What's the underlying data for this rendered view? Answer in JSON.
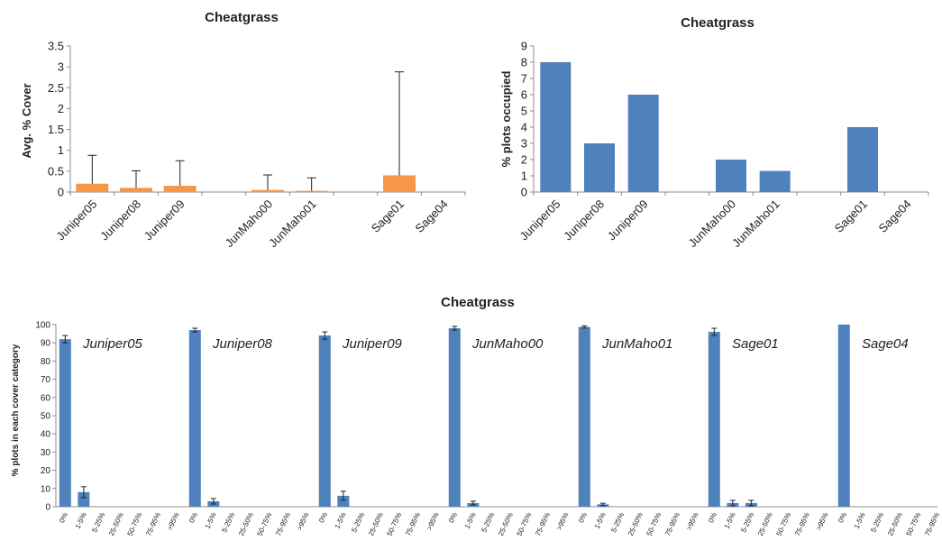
{
  "colors": {
    "orange": "#f79646",
    "blue": "#4f81bd",
    "axis": "#8c8c8c",
    "text": "#222222"
  },
  "chart_data": [
    {
      "type": "bar",
      "title": "Cheatgrass",
      "ylabel": "Avg. % Cover",
      "xlabel": "",
      "ylim": [
        0,
        3.5
      ],
      "yticks": [
        "0",
        "0.5",
        "1",
        "1.5",
        "2",
        "2.5",
        "3",
        "3.5"
      ],
      "ytick_values": [
        0,
        0.5,
        1,
        1.5,
        2,
        2.5,
        3,
        3.5
      ],
      "categories": [
        "Juniper05",
        "Juniper08",
        "Juniper09",
        "",
        "JunMaho00",
        "JunMaho01",
        "",
        "Sage01",
        "Sage04"
      ],
      "values": [
        0.2,
        0.1,
        0.15,
        null,
        0.05,
        0.03,
        null,
        0.4,
        0
      ],
      "error_upper": [
        0.88,
        0.51,
        0.75,
        null,
        0.41,
        0.34,
        null,
        2.88,
        null
      ],
      "grid": false,
      "legend": "none",
      "color": "orange"
    },
    {
      "type": "bar",
      "title": "Cheatgrass",
      "ylabel": "% plots occupied",
      "xlabel": "",
      "ylim": [
        0,
        9
      ],
      "yticks": [
        "0",
        "1",
        "2",
        "3",
        "4",
        "5",
        "6",
        "7",
        "8",
        "9"
      ],
      "ytick_values": [
        0,
        1,
        2,
        3,
        4,
        5,
        6,
        7,
        8,
        9
      ],
      "categories": [
        "Juniper05",
        "Juniper08",
        "Juniper09",
        "",
        "JunMaho00",
        "JunMaho01",
        "",
        "Sage01",
        "Sage04"
      ],
      "values": [
        8,
        3,
        6,
        null,
        2,
        1.3,
        null,
        4,
        0
      ],
      "grid": false,
      "legend": "none",
      "color": "blue"
    },
    {
      "type": "bar",
      "title": "Cheatgrass",
      "ylabel": "% plots in each cover category",
      "xlabel": "",
      "ylim": [
        0,
        100
      ],
      "yticks": [
        "0",
        "10",
        "20",
        "30",
        "40",
        "50",
        "60",
        "70",
        "80",
        "90",
        "100"
      ],
      "ytick_values": [
        0,
        10,
        20,
        30,
        40,
        50,
        60,
        70,
        80,
        90,
        100
      ],
      "categories": [
        "0%",
        "1-5%",
        "5-25%",
        "25-50%",
        "50-75%",
        "75-95%",
        ">95%"
      ],
      "groups": [
        {
          "label": "Juniper05",
          "values": [
            92,
            8,
            0,
            0,
            0,
            0,
            0
          ],
          "err": [
            2,
            3,
            0,
            0,
            0,
            0,
            0
          ]
        },
        {
          "label": "Juniper08",
          "values": [
            97,
            3,
            0,
            0,
            0,
            0,
            0
          ],
          "err": [
            1,
            1.5,
            0,
            0,
            0,
            0,
            0
          ]
        },
        {
          "label": "Juniper09",
          "values": [
            94,
            6,
            0,
            0,
            0,
            0,
            0
          ],
          "err": [
            2,
            2.5,
            0,
            0,
            0,
            0,
            0
          ]
        },
        {
          "label": "JunMaho00",
          "values": [
            98,
            2,
            0,
            0,
            0,
            0,
            0
          ],
          "err": [
            1,
            1,
            0,
            0,
            0,
            0,
            0
          ]
        },
        {
          "label": "JunMaho01",
          "values": [
            98.7,
            1.3,
            0,
            0,
            0,
            0,
            0
          ],
          "err": [
            0.6,
            0.6,
            0,
            0,
            0,
            0,
            0
          ]
        },
        {
          "label": "Sage01",
          "values": [
            96,
            2,
            2,
            0,
            0,
            0,
            0
          ],
          "err": [
            2,
            1.5,
            1.5,
            0,
            0,
            0,
            0
          ]
        },
        {
          "label": "Sage04",
          "values": [
            100,
            0,
            0,
            0,
            0,
            0,
            0
          ],
          "err": [
            0,
            0,
            0,
            0,
            0,
            0,
            0
          ]
        }
      ],
      "grid": false,
      "legend": "none",
      "color": "blue"
    }
  ]
}
